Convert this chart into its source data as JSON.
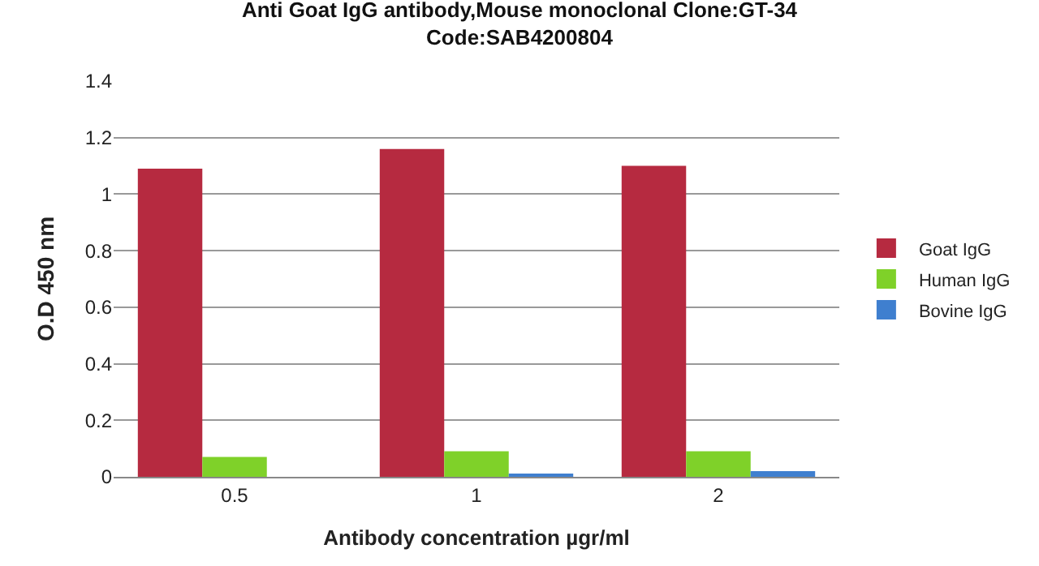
{
  "chart_data": {
    "type": "bar",
    "title": "Anti Goat IgG antibody,Mouse monoclonal Clone:GT-34\nCode:SAB4200804",
    "xlabel": "Antibody concentration µgr/ml",
    "ylabel": "O.D 450 nm",
    "categories": [
      "0.5",
      "1",
      "2"
    ],
    "series": [
      {
        "name": "Goat IgG",
        "color": "#b62a40",
        "values": [
          1.09,
          1.16,
          1.1
        ]
      },
      {
        "name": "Human IgG",
        "color": "#7fd129",
        "values": [
          0.07,
          0.09,
          0.09
        ]
      },
      {
        "name": "Bovine IgG",
        "color": "#3f7fcf",
        "values": [
          0,
          0.01,
          0.02
        ]
      }
    ],
    "ylim": [
      0,
      1.4
    ],
    "yticks": [
      0,
      0.2,
      0.4,
      0.6,
      0.8,
      1,
      1.2,
      1.4
    ],
    "grid": "y",
    "legend": "right"
  }
}
